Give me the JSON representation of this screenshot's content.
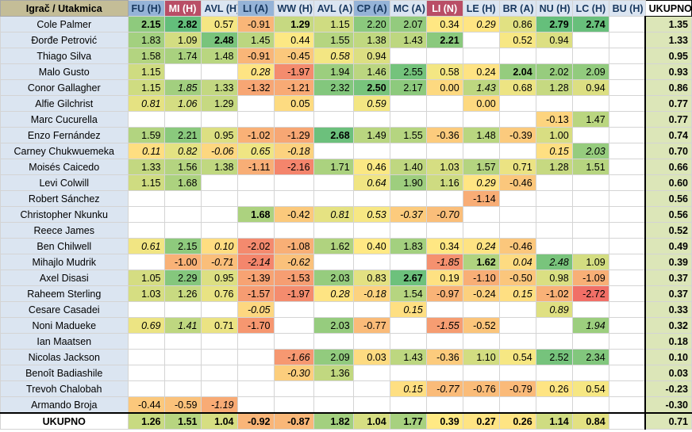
{
  "corner_label": "Igrač / Utakmica",
  "total_label": "UKUPNO",
  "columns": [
    {
      "label": "FU (H)",
      "style": "blue"
    },
    {
      "label": "MI (H)",
      "style": "red"
    },
    {
      "label": "AVL (H)",
      "style": "gray"
    },
    {
      "label": "LI (A)",
      "style": "blue"
    },
    {
      "label": "WW (H)",
      "style": "gray"
    },
    {
      "label": "AVL (A)",
      "style": "gray"
    },
    {
      "label": "CP (A)",
      "style": "blue"
    },
    {
      "label": "MC (A)",
      "style": "gray"
    },
    {
      "label": "LI (N)",
      "style": "red"
    },
    {
      "label": "LE (H)",
      "style": "gray"
    },
    {
      "label": "BR (A)",
      "style": "gray"
    },
    {
      "label": "NU (H)",
      "style": "gray"
    },
    {
      "label": "LC (H)",
      "style": "gray"
    },
    {
      "label": "BU (H)",
      "style": "gray"
    }
  ],
  "rows": [
    {
      "name": "Cole Palmer",
      "cells": [
        "*2.15",
        "*2.82",
        "0.57",
        "-0.91",
        "*1.29",
        "1.15",
        "2.20",
        "2.07",
        "0.34",
        "/0.29",
        "0.86",
        "*2.79",
        "*2.74",
        ""
      ],
      "total": "1.35"
    },
    {
      "name": "Đorđe Petrović",
      "cells": [
        "1.83",
        "1.09",
        "*2.48",
        "1.45",
        "0.44",
        "1.55",
        "1.38",
        "1.43",
        "*2.21",
        "",
        "0.52",
        "0.94",
        "",
        ""
      ],
      "total": "1.33"
    },
    {
      "name": "Thiago Silva",
      "cells": [
        "1.58",
        "1.74",
        "1.48",
        "-0.91",
        "-0.45",
        "/0.58",
        "0.94",
        "",
        "",
        "",
        "",
        "",
        "",
        ""
      ],
      "total": "0.95"
    },
    {
      "name": "Malo Gusto",
      "cells": [
        "1.15",
        "",
        "",
        "/0.28",
        "-1.97",
        "1.94",
        "1.46",
        "2.55",
        "0.58",
        "0.24",
        "*2.04",
        "2.02",
        "2.09",
        ""
      ],
      "total": "0.93"
    },
    {
      "name": "Conor Gallagher",
      "cells": [
        "1.15",
        "/1.85",
        "1.33",
        "-1.32",
        "-1.21",
        "2.32",
        "*2.50",
        "2.17",
        "0.00",
        "/1.43",
        "0.68",
        "1.28",
        "0.94",
        ""
      ],
      "total": "0.86"
    },
    {
      "name": "Alfie Gilchrist",
      "cells": [
        "/0.81",
        "/1.06",
        "1.29",
        "",
        "0.05",
        "",
        "/0.59",
        "",
        "",
        "0.00",
        "",
        "",
        "",
        ""
      ],
      "total": "0.77"
    },
    {
      "name": "Marc Cucurella",
      "cells": [
        "",
        "",
        "",
        "",
        "",
        "",
        "",
        "",
        "",
        "",
        "",
        "-0.13",
        "1.47",
        ""
      ],
      "total": "0.77"
    },
    {
      "name": "Enzo Fernández",
      "cells": [
        "1.59",
        "2.21",
        "0.95",
        "-1.02",
        "-1.29",
        "*2.68",
        "1.49",
        "1.55",
        "-0.36",
        "1.48",
        "-0.39",
        "1.00",
        "",
        ""
      ],
      "total": "0.74"
    },
    {
      "name": "Carney Chukwuemeka",
      "cells": [
        "/0.11",
        "/0.82",
        "/-0.06",
        "/0.65",
        "/-0.18",
        "",
        "",
        "",
        "",
        "",
        "",
        "/0.15",
        "/2.03",
        ""
      ],
      "total": "0.70"
    },
    {
      "name": "Moisés Caicedo",
      "cells": [
        "1.33",
        "1.56",
        "1.38",
        "-1.11",
        "-2.16",
        "1.71",
        "0.46",
        "1.40",
        "1.03",
        "1.57",
        "0.71",
        "1.28",
        "1.51",
        ""
      ],
      "total": "0.66"
    },
    {
      "name": "Levi Colwill",
      "cells": [
        "1.15",
        "1.68",
        "",
        "",
        "",
        "",
        "/0.64",
        "1.90",
        "1.16",
        "/0.29",
        "-0.46",
        "",
        "",
        ""
      ],
      "total": "0.60"
    },
    {
      "name": "Robert Sánchez",
      "cells": [
        "",
        "",
        "",
        "",
        "",
        "",
        "",
        "",
        "",
        "-1.14",
        "",
        "",
        "",
        ""
      ],
      "total": "0.56"
    },
    {
      "name": "Christopher Nkunku",
      "cells": [
        "",
        "",
        "",
        "*1.68",
        "-0.42",
        "/0.81",
        "/0.53",
        "/-0.37",
        "/-0.70",
        "",
        "",
        "",
        "",
        ""
      ],
      "total": "0.56"
    },
    {
      "name": "Reece James",
      "cells": [
        "",
        "",
        "",
        "",
        "",
        "",
        "",
        "",
        "",
        "",
        "",
        "",
        "",
        ""
      ],
      "total": "0.52"
    },
    {
      "name": "Ben Chilwell",
      "cells": [
        "/0.61",
        "2.15",
        "/0.10",
        "-2.02",
        "-1.08",
        "1.62",
        "0.40",
        "1.83",
        "0.34",
        "/0.24",
        "-0.46",
        "",
        "",
        ""
      ],
      "total": "0.49"
    },
    {
      "name": "Mihajlo Mudrik",
      "cells": [
        "",
        "-1.00",
        "/-0.71",
        "/-2.14",
        "/-0.62",
        "",
        "",
        "",
        "/-1.85",
        "*1.62",
        "/0.04",
        "/2.48",
        "1.09",
        ""
      ],
      "total": "0.39"
    },
    {
      "name": "Axel Disasi",
      "cells": [
        "1.05",
        "2.29",
        "0.95",
        "-1.39",
        "-1.53",
        "2.03",
        "0.83",
        "*2.67",
        "0.19",
        "-1.10",
        "-0.50",
        "0.98",
        "-1.09",
        ""
      ],
      "total": "0.37"
    },
    {
      "name": "Raheem Sterling",
      "cells": [
        "1.03",
        "1.26",
        "0.76",
        "-1.57",
        "-1.97",
        "/0.28",
        "/-0.18",
        "1.54",
        "-0.97",
        "-0.24",
        "/0.15",
        "-1.02",
        "-2.72",
        ""
      ],
      "total": "0.37"
    },
    {
      "name": "Cesare Casadei",
      "cells": [
        "",
        "",
        "",
        "/-0.05",
        "",
        "",
        "",
        "/0.15",
        "",
        "",
        "",
        "/0.89",
        "",
        ""
      ],
      "total": "0.33"
    },
    {
      "name": "Noni Madueke",
      "cells": [
        "/0.69",
        "/1.41",
        "0.71",
        "-1.70",
        "",
        "2.03",
        "-0.77",
        "",
        "/-1.55",
        "-0.52",
        "",
        "",
        "/1.94",
        ""
      ],
      "total": "0.32"
    },
    {
      "name": "Ian Maatsen",
      "cells": [
        "",
        "",
        "",
        "",
        "",
        "",
        "",
        "",
        "",
        "",
        "",
        "",
        "",
        ""
      ],
      "total": "0.18"
    },
    {
      "name": "Nicolas Jackson",
      "cells": [
        "",
        "",
        "",
        "",
        "/-1.66",
        "2.09",
        "0.03",
        "1.43",
        "-0.36",
        "1.10",
        "0.54",
        "2.52",
        "2.34",
        ""
      ],
      "total": "0.10"
    },
    {
      "name": "Benoît Badiashile",
      "cells": [
        "",
        "",
        "",
        "",
        "/-0.30",
        "1.36",
        "",
        "",
        "",
        "",
        "",
        "",
        "",
        ""
      ],
      "total": "0.03"
    },
    {
      "name": "Trevoh Chalobah",
      "cells": [
        "",
        "",
        "",
        "",
        "",
        "",
        "",
        "/0.15",
        "/-0.77",
        "-0.76",
        "-0.79",
        "0.26",
        "0.54",
        ""
      ],
      "total": "-0.23"
    },
    {
      "name": "Armando Broja",
      "cells": [
        "-0.44",
        "-0.59",
        "/-1.19",
        "",
        "",
        "",
        "",
        "",
        "",
        "",
        "",
        "",
        "",
        ""
      ],
      "total": "-0.30"
    }
  ],
  "footer": {
    "label": "UKUPNO",
    "cells": [
      "1.26",
      "1.51",
      "1.04",
      "-0.92",
      "-0.87",
      "1.82",
      "1.04",
      "1.77",
      "0.39",
      "0.27",
      "0.26",
      "1.14",
      "0.84",
      ""
    ],
    "total": "0.71"
  }
}
